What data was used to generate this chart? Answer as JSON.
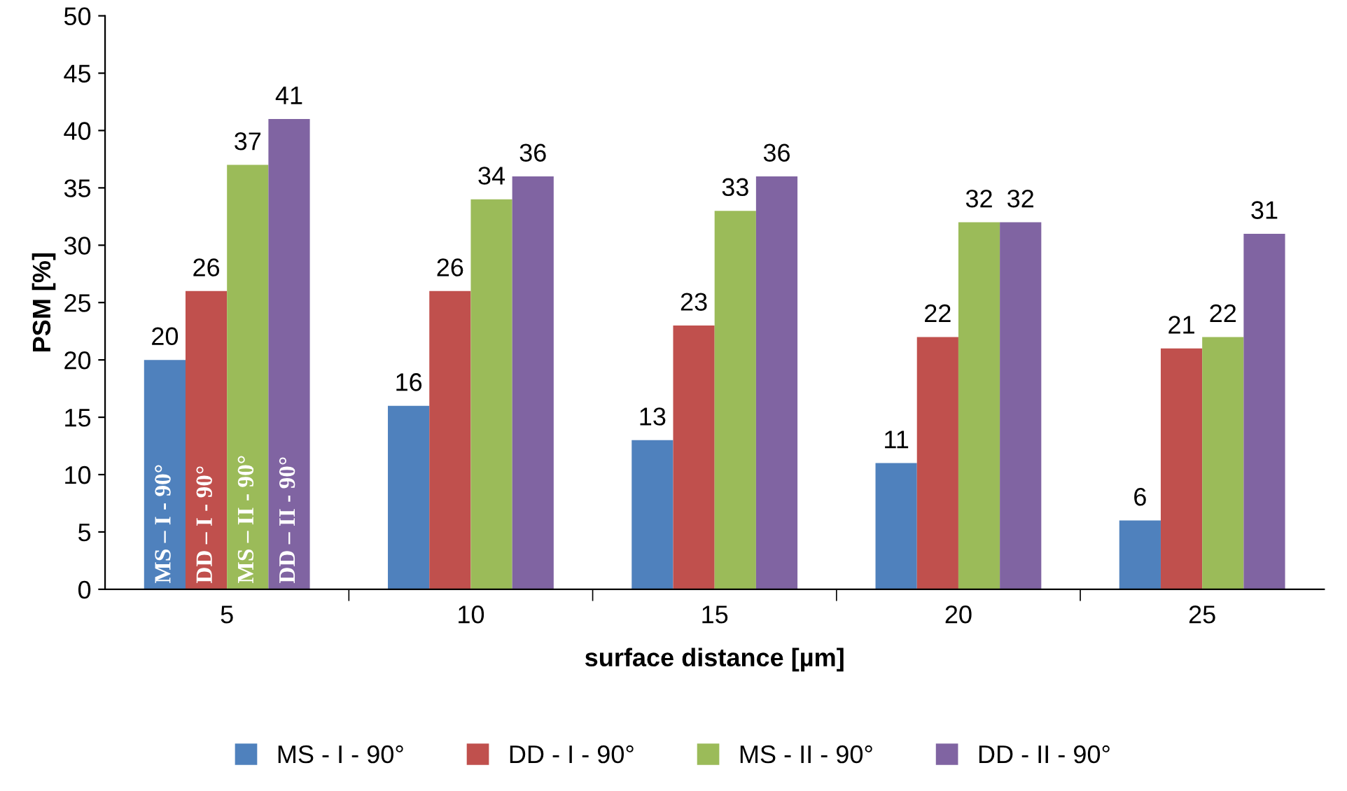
{
  "chart_data": {
    "type": "bar",
    "xlabel": "surface distance [µm]",
    "ylabel": "PSM [%]",
    "categories": [
      "5",
      "10",
      "15",
      "20",
      "25"
    ],
    "series": [
      {
        "name": "MS - I - 90°",
        "color": "#4f81bd",
        "values": [
          20,
          16,
          13,
          11,
          6
        ]
      },
      {
        "name": "DD - I - 90°",
        "color": "#c0504d",
        "values": [
          26,
          26,
          23,
          22,
          21
        ]
      },
      {
        "name": "MS - II - 90°",
        "color": "#9bbb59",
        "values": [
          37,
          34,
          33,
          32,
          22
        ]
      },
      {
        "name": "DD - II - 90°",
        "color": "#8064a2",
        "values": [
          41,
          36,
          36,
          32,
          31
        ]
      }
    ],
    "ylim": [
      0,
      50
    ],
    "yticks": [
      0,
      5,
      10,
      15,
      20,
      25,
      30,
      35,
      40,
      45,
      50
    ],
    "data_labels": true,
    "grid": false,
    "legend": "bottom",
    "annotations": [
      "MS – I - 90°",
      "DD – I - 90°",
      "MS – II - 90°",
      "DD – II - 90°"
    ]
  }
}
